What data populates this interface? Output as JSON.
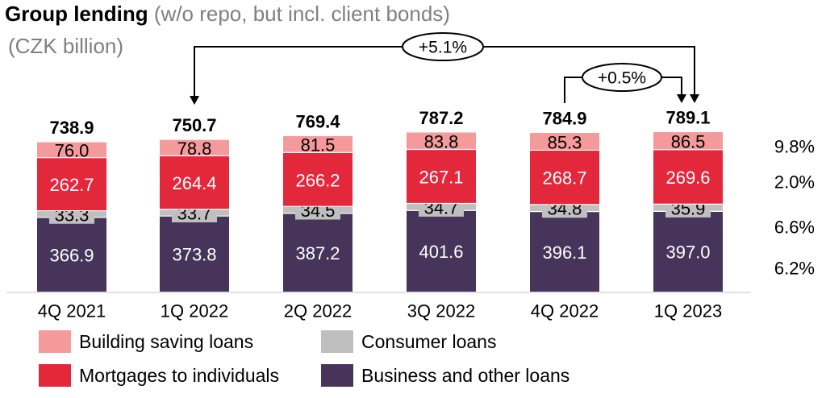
{
  "header": {
    "title_bold": "Group lending",
    "title_rest": " (w/o repo, but incl. client bonds)",
    "unit": "(CZK billion)"
  },
  "chart_data": {
    "type": "bar",
    "stacked": true,
    "categories": [
      "4Q 2021",
      "1Q 2022",
      "2Q 2022",
      "3Q 2022",
      "4Q 2022",
      "1Q 2023"
    ],
    "totals": [
      "738.9",
      "750.7",
      "769.4",
      "787.2",
      "784.9",
      "789.1"
    ],
    "series": [
      {
        "name": "Business and other loans",
        "color": "#47345a",
        "label_color": "#ffffff",
        "values": [
          366.9,
          373.8,
          387.2,
          401.6,
          396.1,
          397.0
        ],
        "labels": [
          "366.9",
          "373.8",
          "387.2",
          "401.6",
          "396.1",
          "397.0"
        ]
      },
      {
        "name": "Consumer loans",
        "color": "#bfbfbf",
        "label_color": "#000000",
        "values": [
          33.3,
          33.7,
          34.5,
          34.7,
          34.8,
          35.9
        ],
        "labels": [
          "33.3",
          "33.7",
          "34.5",
          "34.7",
          "34.8",
          "35.9"
        ]
      },
      {
        "name": "Mortgages to individuals",
        "color": "#e3283c",
        "label_color": "#ffffff",
        "values": [
          262.7,
          264.4,
          266.2,
          267.1,
          268.7,
          269.6
        ],
        "labels": [
          "262.7",
          "264.4",
          "266.2",
          "267.1",
          "268.7",
          "269.6"
        ]
      },
      {
        "name": "Building saving loans",
        "color": "#f59a9b",
        "label_color": "#000000",
        "values": [
          76.0,
          78.8,
          81.5,
          83.8,
          85.3,
          86.5
        ],
        "labels": [
          "76.0",
          "78.8",
          "81.5",
          "83.8",
          "85.3",
          "86.5"
        ]
      }
    ],
    "growth_labels": [
      "9.8%",
      "2.0%",
      "6.6%",
      "6.2%"
    ],
    "annotations": [
      {
        "text": "+5.1%",
        "from": "1Q 2022",
        "to": "1Q 2023"
      },
      {
        "text": "+0.5%",
        "from": "4Q 2022",
        "to": "1Q 2023"
      }
    ],
    "legend": [
      {
        "name": "Building saving loans",
        "color": "#f59a9b"
      },
      {
        "name": "Consumer loans",
        "color": "#bfbfbf"
      },
      {
        "name": "Mortgages to individuals",
        "color": "#e3283c"
      },
      {
        "name": "Business and other loans",
        "color": "#47345a"
      }
    ]
  }
}
